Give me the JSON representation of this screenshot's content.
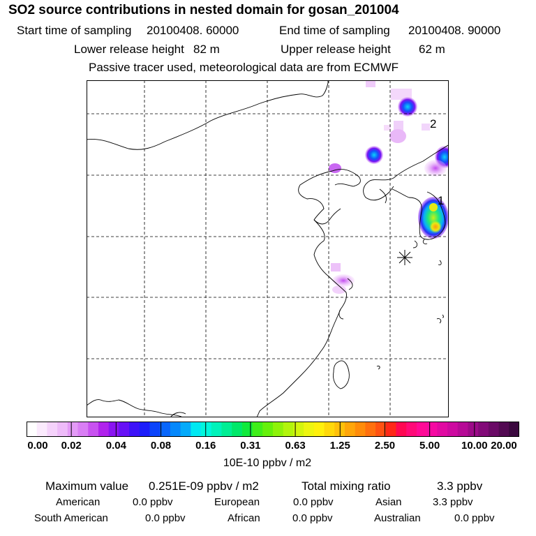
{
  "title": "SO2 source contributions in nested domain for gosan_201004",
  "sampling": {
    "start_label": "Start time of sampling",
    "start_value": "20100408. 60000",
    "end_label": "End time of sampling",
    "end_value": "20100408. 90000"
  },
  "release": {
    "lower_label": "Lower release height",
    "lower_value": "82 m",
    "upper_label": "Upper release height",
    "upper_value": "62 m"
  },
  "tracer_note": "Passive tracer used, meteorological data are from ECMWF",
  "map": {
    "markers": [
      {
        "label": "1"
      },
      {
        "label": "2"
      }
    ],
    "receptor_symbol": "asterisk"
  },
  "colorbar": {
    "ticks": [
      "0.00",
      "0.02",
      "0.04",
      "0.08",
      "0.16",
      "0.31",
      "0.63",
      "1.25",
      "2.50",
      "5.00",
      "10.00",
      "20.00"
    ],
    "unit": "10E-10 ppbv / m2",
    "colors": [
      "#ffffff",
      "#fbeafd",
      "#f5d2fb",
      "#eebbf9",
      "#e39af6",
      "#d97ef4",
      "#c852f0",
      "#b023ec",
      "#8a14f1",
      "#6711f6",
      "#3d12f8",
      "#1c1dfa",
      "#0b44fb",
      "#0866fb",
      "#0588fb",
      "#04aafa",
      "#00e8f2",
      "#00f6dc",
      "#00f2ba",
      "#00ee94",
      "#00e86a",
      "#10ea3c",
      "#40ee1a",
      "#66f00c",
      "#8ef20a",
      "#b2f40c",
      "#d4f50e",
      "#eef510",
      "#fff00c",
      "#ffd80a",
      "#ffc00a",
      "#ffa60a",
      "#ff8c0a",
      "#ff700e",
      "#ff5212",
      "#ff2818",
      "#ff0852",
      "#ff0a78",
      "#ff0a96",
      "#f50aa2",
      "#e10aa2",
      "#cd0aa0",
      "#b60a96",
      "#9c0a88",
      "#820a78",
      "#6a0a66",
      "#520a52",
      "#3a083e"
    ]
  },
  "summary": {
    "max_label": "Maximum value",
    "max_value": "0.251E-09 ppbv / m2",
    "total_label": "Total mixing ratio",
    "total_value": "3.3 ppbv"
  },
  "regions": [
    {
      "name": "American",
      "value": "0.0 ppbv"
    },
    {
      "name": "European",
      "value": "0.0 ppbv"
    },
    {
      "name": "Asian",
      "value": "3.3 ppbv"
    },
    {
      "name": "South American",
      "value": "0.0 ppbv"
    },
    {
      "name": "African",
      "value": "0.0 ppbv"
    },
    {
      "name": "Australian",
      "value": "0.0 ppbv"
    }
  ]
}
